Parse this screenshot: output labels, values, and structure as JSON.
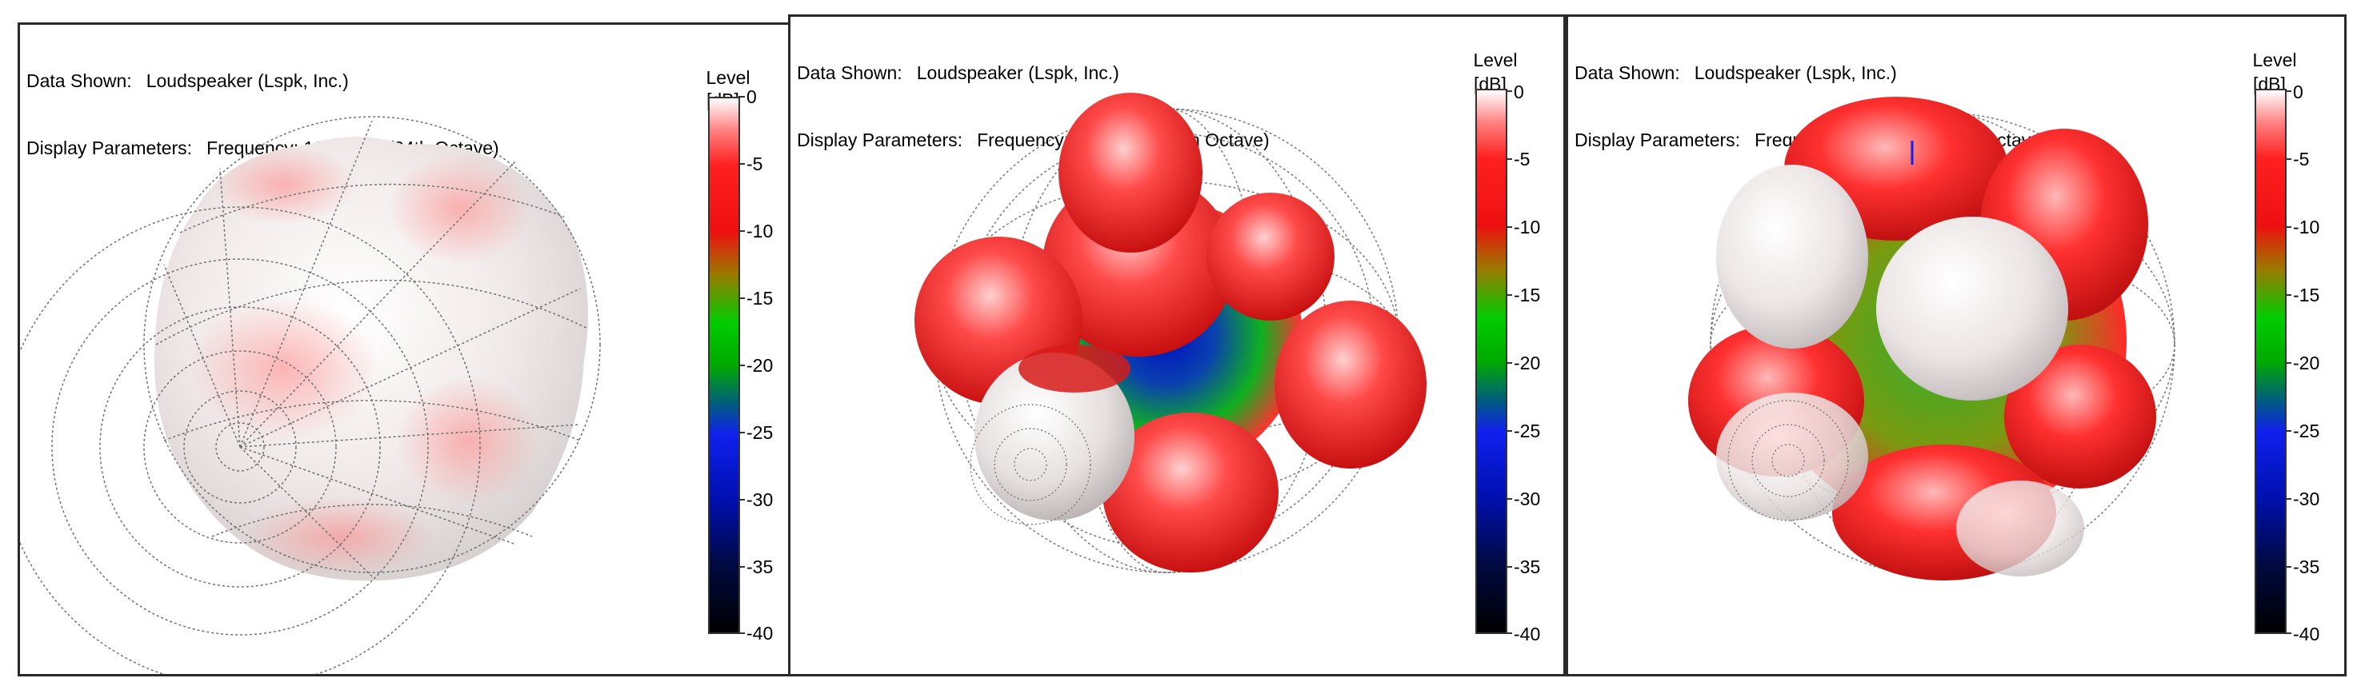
{
  "panels": [
    {
      "data_shown_label": "Data Shown:",
      "data_shown_value": "Loudspeaker (Lspk, Inc.)",
      "display_params_label": "Display Parameters:",
      "display_params_value": "Frequency: 1000Hz (1/24th Octave)",
      "scale_title": "Level",
      "scale_unit": "[dB]",
      "scale_ticks": [
        "0",
        "-5",
        "-10",
        "-15",
        "-20",
        "-25",
        "-30",
        "-35",
        "-40"
      ]
    },
    {
      "data_shown_label": "Data Shown:",
      "data_shown_value": "Loudspeaker (Lspk, Inc.)",
      "display_params_label": "Display Parameters:",
      "display_params_value": "Frequency: 1000Hz (1/24th Octave)",
      "scale_title": "Level",
      "scale_unit": "[dB]",
      "scale_ticks": [
        "0",
        "-5",
        "-10",
        "-15",
        "-20",
        "-25",
        "-30",
        "-35",
        "-40"
      ]
    },
    {
      "data_shown_label": "Data Shown:",
      "data_shown_value": "Loudspeaker (Lspk, Inc.)",
      "display_params_label": "Display Parameters:",
      "display_params_value": "Frequency: 1000Hz (1/24th Octave)",
      "scale_title": "Level",
      "scale_unit": "[dB]",
      "scale_ticks": [
        "0",
        "-5",
        "-10",
        "-15",
        "-20",
        "-25",
        "-30",
        "-35",
        "-40"
      ]
    }
  ],
  "colors": {
    "level_0": "#ffffff",
    "level_minus10": "#ff2020",
    "level_minus20": "#00aa00",
    "level_minus30": "#1020ee",
    "level_minus40": "#000000",
    "grid": "#707070"
  }
}
